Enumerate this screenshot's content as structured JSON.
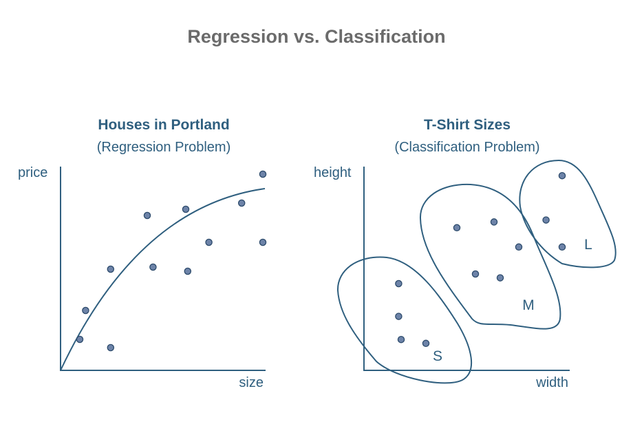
{
  "title": "Regression vs. Classification",
  "regression": {
    "title": "Houses in Portland",
    "subtitle": "(Regression Problem)",
    "xlabel": "size",
    "ylabel": "price",
    "points": [
      {
        "size": 1.0,
        "price": 1.5
      },
      {
        "size": 1.3,
        "price": 2.9
      },
      {
        "size": 2.6,
        "price": 1.1
      },
      {
        "size": 2.6,
        "price": 4.9
      },
      {
        "size": 4.5,
        "price": 7.5
      },
      {
        "size": 4.8,
        "price": 5.0
      },
      {
        "size": 6.5,
        "price": 7.8
      },
      {
        "size": 6.6,
        "price": 4.8
      },
      {
        "size": 7.7,
        "price": 6.2
      },
      {
        "size": 9.4,
        "price": 8.1
      },
      {
        "size": 10.5,
        "price": 9.5
      },
      {
        "size": 10.5,
        "price": 6.2
      }
    ]
  },
  "classification": {
    "title": "T-Shirt Sizes",
    "subtitle": "(Classification Problem)",
    "xlabel": "width",
    "ylabel": "height",
    "clusters": [
      {
        "label": "S",
        "points": [
          [
            2.8,
            4.5
          ],
          [
            5.0,
            1.4
          ],
          [
            2.8,
            2.8
          ],
          [
            3.0,
            1.6
          ]
        ]
      },
      {
        "label": "M",
        "points": [
          [
            7.5,
            7.4
          ],
          [
            10.5,
            7.7
          ],
          [
            12.5,
            6.4
          ],
          [
            9.0,
            5.0
          ],
          [
            11.0,
            4.8
          ]
        ]
      },
      {
        "label": "L",
        "points": [
          [
            16.0,
            10.1
          ],
          [
            14.7,
            7.8
          ],
          [
            16.0,
            6.4
          ]
        ]
      }
    ]
  }
}
